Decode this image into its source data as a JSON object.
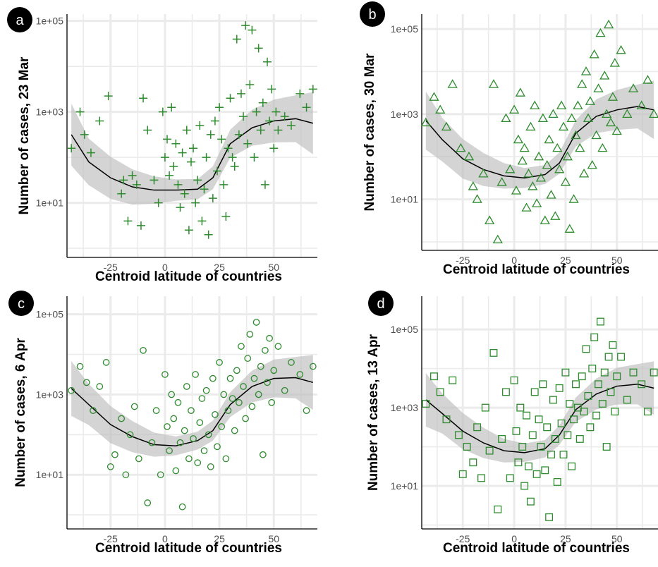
{
  "chart_data": [
    {
      "label": "a",
      "type": "scatter",
      "marker": "plus",
      "xlabel": "Centroid latitude of countries",
      "ylabel": "Number of cases, 23 Mar",
      "xlim": [
        -45,
        70
      ],
      "ylim_log10": [
        -0.2,
        5.15
      ],
      "yscale": "log10",
      "x_ticks": [
        "-25",
        "0",
        "25",
        "50"
      ],
      "y_ticks": [
        "1e+01",
        "1e+03",
        "1e+05"
      ],
      "grid": true,
      "marker_color": "#2e8b2e",
      "trend": {
        "x": [
          -43,
          -35,
          -25,
          -15,
          -5,
          5,
          15,
          22,
          30,
          40,
          50,
          60,
          68
        ],
        "log10_y": [
          2.5,
          1.9,
          1.55,
          1.35,
          1.28,
          1.28,
          1.3,
          1.55,
          2.3,
          2.65,
          2.8,
          2.85,
          2.75
        ]
      },
      "points": [
        [
          -43,
          2.2
        ],
        [
          -39,
          3.0
        ],
        [
          -37,
          2.5
        ],
        [
          -34,
          2.1
        ],
        [
          -30,
          2.8
        ],
        [
          -26,
          3.35
        ],
        [
          -20,
          1.2
        ],
        [
          -19,
          1.5
        ],
        [
          -17,
          0.6
        ],
        [
          -15,
          1.6
        ],
        [
          -13,
          1.4
        ],
        [
          -11,
          0.5
        ],
        [
          -10,
          3.3
        ],
        [
          -8,
          2.6
        ],
        [
          -5,
          1.5
        ],
        [
          -3,
          1.0
        ],
        [
          -1,
          3.0
        ],
        [
          0,
          2.0
        ],
        [
          1,
          2.4
        ],
        [
          2,
          1.6
        ],
        [
          3,
          3.1
        ],
        [
          4,
          1.8
        ],
        [
          5,
          2.3
        ],
        [
          6,
          1.4
        ],
        [
          7,
          0.9
        ],
        [
          8,
          2.1
        ],
        [
          9,
          1.2
        ],
        [
          10,
          2.6
        ],
        [
          11,
          0.4
        ],
        [
          12,
          1.9
        ],
        [
          13,
          2.2
        ],
        [
          14,
          1.0
        ],
        [
          15,
          1.5
        ],
        [
          16,
          2.7
        ],
        [
          17,
          0.6
        ],
        [
          18,
          1.3
        ],
        [
          19,
          2.0
        ],
        [
          20,
          0.3
        ],
        [
          21,
          2.5
        ],
        [
          22,
          1.1
        ],
        [
          23,
          2.8
        ],
        [
          24,
          1.7
        ],
        [
          25,
          3.1
        ],
        [
          26,
          2.4
        ],
        [
          27,
          1.4
        ],
        [
          28,
          0.7
        ],
        [
          29,
          2.2
        ],
        [
          30,
          3.3
        ],
        [
          31,
          2.0
        ],
        [
          32,
          1.8
        ],
        [
          33,
          4.6
        ],
        [
          34,
          2.5
        ],
        [
          35,
          3.4
        ],
        [
          36,
          2.9
        ],
        [
          37,
          4.9
        ],
        [
          38,
          2.3
        ],
        [
          39,
          3.6
        ],
        [
          40,
          4.8
        ],
        [
          41,
          2.0
        ],
        [
          42,
          3.0
        ],
        [
          43,
          4.4
        ],
        [
          44,
          2.6
        ],
        [
          45,
          3.2
        ],
        [
          46,
          1.4
        ],
        [
          47,
          4.1
        ],
        [
          48,
          2.8
        ],
        [
          49,
          3.5
        ],
        [
          50,
          2.2
        ],
        [
          51,
          3.0
        ],
        [
          52,
          2.6
        ],
        [
          55,
          2.9
        ],
        [
          58,
          2.7
        ],
        [
          62,
          3.4
        ],
        [
          65,
          3.1
        ],
        [
          68,
          3.5
        ]
      ]
    },
    {
      "label": "b",
      "type": "scatter",
      "marker": "triangle",
      "xlabel": "Centroid latitude of countries",
      "ylabel": "Number of cases, 30 Mar",
      "xlim": [
        -45,
        70
      ],
      "ylim_log10": [
        -0.2,
        5.35
      ],
      "yscale": "log10",
      "x_ticks": [
        "-25",
        "0",
        "25",
        "50"
      ],
      "y_ticks": [
        "1e+01",
        "1e+03",
        "1e+05"
      ],
      "grid": true,
      "marker_color": "#2e8b2e",
      "trend": {
        "x": [
          -43,
          -35,
          -25,
          -15,
          -5,
          5,
          15,
          22,
          30,
          40,
          50,
          60,
          68
        ],
        "log10_y": [
          2.85,
          2.4,
          1.95,
          1.7,
          1.55,
          1.5,
          1.58,
          1.85,
          2.55,
          2.95,
          3.1,
          3.18,
          3.1
        ]
      },
      "points": [
        [
          -43,
          2.8
        ],
        [
          -39,
          3.4
        ],
        [
          -36,
          3.1
        ],
        [
          -33,
          2.7
        ],
        [
          -30,
          3.7
        ],
        [
          -26,
          2.2
        ],
        [
          -22,
          2.0
        ],
        [
          -20,
          1.3
        ],
        [
          -18,
          1.0
        ],
        [
          -15,
          1.6
        ],
        [
          -12,
          0.5
        ],
        [
          -10,
          3.7
        ],
        [
          -8,
          0.05
        ],
        [
          -6,
          1.4
        ],
        [
          -4,
          2.9
        ],
        [
          -2,
          1.7
        ],
        [
          0,
          3.1
        ],
        [
          1,
          1.2
        ],
        [
          2,
          2.4
        ],
        [
          3,
          3.5
        ],
        [
          4,
          1.9
        ],
        [
          5,
          2.2
        ],
        [
          6,
          0.8
        ],
        [
          7,
          1.6
        ],
        [
          8,
          2.7
        ],
        [
          9,
          1.3
        ],
        [
          10,
          3.2
        ],
        [
          11,
          0.9
        ],
        [
          12,
          2.0
        ],
        [
          13,
          1.5
        ],
        [
          14,
          2.9
        ],
        [
          15,
          0.5
        ],
        [
          16,
          1.8
        ],
        [
          17,
          2.4
        ],
        [
          18,
          1.1
        ],
        [
          19,
          3.0
        ],
        [
          20,
          0.6
        ],
        [
          21,
          2.2
        ],
        [
          22,
          1.7
        ],
        [
          23,
          3.2
        ],
        [
          24,
          2.7
        ],
        [
          25,
          1.4
        ],
        [
          26,
          2.0
        ],
        [
          27,
          0.3
        ],
        [
          28,
          2.9
        ],
        [
          29,
          1.0
        ],
        [
          30,
          2.5
        ],
        [
          31,
          3.2
        ],
        [
          32,
          2.2
        ],
        [
          33,
          3.7
        ],
        [
          34,
          1.6
        ],
        [
          35,
          4.0
        ],
        [
          36,
          2.9
        ],
        [
          37,
          3.3
        ],
        [
          38,
          1.8
        ],
        [
          39,
          4.4
        ],
        [
          40,
          2.5
        ],
        [
          41,
          3.6
        ],
        [
          42,
          4.9
        ],
        [
          43,
          2.2
        ],
        [
          44,
          3.9
        ],
        [
          45,
          3.0
        ],
        [
          46,
          5.1
        ],
        [
          47,
          2.8
        ],
        [
          48,
          3.4
        ],
        [
          49,
          4.2
        ],
        [
          50,
          2.6
        ],
        [
          52,
          4.5
        ],
        [
          55,
          3.0
        ],
        [
          58,
          3.6
        ],
        [
          62,
          3.2
        ],
        [
          65,
          3.8
        ],
        [
          68,
          3.0
        ]
      ]
    },
    {
      "label": "c",
      "type": "scatter",
      "marker": "circle",
      "xlabel": "Centroid latitude of countries",
      "ylabel": "Number of cases, 6 Apr",
      "xlim": [
        -45,
        70
      ],
      "ylim_log10": [
        -0.35,
        5.45
      ],
      "yscale": "log10",
      "x_ticks": [
        "-25",
        "0",
        "25",
        "50"
      ],
      "y_ticks": [
        "1e+01",
        "1e+03",
        "1e+05"
      ],
      "grid": true,
      "marker_color": "#2e8b2e",
      "trend": {
        "x": [
          -43,
          -35,
          -25,
          -15,
          -5,
          5,
          15,
          22,
          30,
          40,
          50,
          60,
          68
        ],
        "log10_y": [
          3.15,
          2.75,
          2.25,
          1.95,
          1.75,
          1.72,
          1.85,
          2.1,
          2.75,
          3.2,
          3.4,
          3.42,
          3.3
        ]
      },
      "points": [
        [
          -43,
          3.1
        ],
        [
          -39,
          3.7
        ],
        [
          -36,
          3.3
        ],
        [
          -33,
          2.6
        ],
        [
          -30,
          3.2
        ],
        [
          -27,
          3.8
        ],
        [
          -25,
          1.2
        ],
        [
          -23,
          1.5
        ],
        [
          -20,
          2.4
        ],
        [
          -18,
          1.0
        ],
        [
          -16,
          2.0
        ],
        [
          -14,
          2.7
        ],
        [
          -12,
          1.4
        ],
        [
          -10,
          4.1
        ],
        [
          -8,
          0.3
        ],
        [
          -6,
          1.8
        ],
        [
          -4,
          2.6
        ],
        [
          -2,
          1.0
        ],
        [
          0,
          3.5
        ],
        [
          1,
          2.2
        ],
        [
          2,
          1.6
        ],
        [
          3,
          3.0
        ],
        [
          4,
          2.4
        ],
        [
          5,
          1.1
        ],
        [
          6,
          2.8
        ],
        [
          7,
          1.8
        ],
        [
          8,
          0.2
        ],
        [
          9,
          2.1
        ],
        [
          10,
          3.2
        ],
        [
          11,
          1.4
        ],
        [
          12,
          2.6
        ],
        [
          13,
          1.9
        ],
        [
          14,
          3.5
        ],
        [
          15,
          1.3
        ],
        [
          16,
          2.3
        ],
        [
          17,
          2.9
        ],
        [
          18,
          1.6
        ],
        [
          19,
          3.1
        ],
        [
          20,
          2.0
        ],
        [
          21,
          1.2
        ],
        [
          22,
          3.4
        ],
        [
          23,
          2.5
        ],
        [
          24,
          1.7
        ],
        [
          25,
          3.8
        ],
        [
          26,
          2.2
        ],
        [
          27,
          3.0
        ],
        [
          28,
          1.4
        ],
        [
          29,
          2.6
        ],
        [
          30,
          3.4
        ],
        [
          31,
          2.9
        ],
        [
          32,
          2.1
        ],
        [
          33,
          3.6
        ],
        [
          34,
          2.8
        ],
        [
          35,
          4.2
        ],
        [
          36,
          3.2
        ],
        [
          37,
          2.4
        ],
        [
          38,
          3.9
        ],
        [
          39,
          4.5
        ],
        [
          40,
          2.7
        ],
        [
          41,
          3.4
        ],
        [
          42,
          4.8
        ],
        [
          43,
          3.0
        ],
        [
          44,
          3.7
        ],
        [
          45,
          1.5
        ],
        [
          46,
          4.1
        ],
        [
          47,
          3.3
        ],
        [
          48,
          4.4
        ],
        [
          49,
          2.8
        ],
        [
          50,
          3.6
        ],
        [
          52,
          4.2
        ],
        [
          55,
          3.1
        ],
        [
          58,
          3.8
        ],
        [
          62,
          3.5
        ],
        [
          65,
          2.6
        ],
        [
          68,
          3.7
        ]
      ]
    },
    {
      "label": "d",
      "type": "scatter",
      "marker": "square",
      "xlabel": "Centroid latitude of countries",
      "ylabel": "Number of cases, 13 Apr",
      "xlim": [
        -45,
        70
      ],
      "ylim_log10": [
        -0.1,
        5.85
      ],
      "yscale": "log10",
      "x_ticks": [
        "-25",
        "0",
        "25",
        "50"
      ],
      "y_ticks": [
        "1e+01",
        "1e+03",
        "1e+05"
      ],
      "grid": true,
      "marker_color": "#2e8b2e",
      "trend": {
        "x": [
          -43,
          -35,
          -25,
          -15,
          -5,
          5,
          15,
          22,
          30,
          40,
          50,
          60,
          68
        ],
        "log10_y": [
          3.2,
          2.85,
          2.4,
          2.1,
          1.9,
          1.85,
          1.95,
          2.3,
          2.95,
          3.35,
          3.55,
          3.6,
          3.5
        ]
      },
      "points": [
        [
          -43,
          3.1
        ],
        [
          -39,
          3.8
        ],
        [
          -36,
          3.4
        ],
        [
          -33,
          2.7
        ],
        [
          -30,
          3.7
        ],
        [
          -27,
          2.3
        ],
        [
          -25,
          1.3
        ],
        [
          -23,
          2.0
        ],
        [
          -20,
          1.6
        ],
        [
          -18,
          2.5
        ],
        [
          -16,
          1.2
        ],
        [
          -14,
          3.0
        ],
        [
          -12,
          1.9
        ],
        [
          -10,
          4.4
        ],
        [
          -8,
          0.4
        ],
        [
          -6,
          2.2
        ],
        [
          -4,
          3.4
        ],
        [
          -2,
          1.2
        ],
        [
          0,
          3.7
        ],
        [
          1,
          2.4
        ],
        [
          2,
          1.6
        ],
        [
          3,
          3.0
        ],
        [
          4,
          2.0
        ],
        [
          5,
          1.0
        ],
        [
          6,
          2.8
        ],
        [
          7,
          1.5
        ],
        [
          8,
          0.6
        ],
        [
          9,
          2.3
        ],
        [
          10,
          3.4
        ],
        [
          11,
          1.3
        ],
        [
          12,
          2.7
        ],
        [
          13,
          2.0
        ],
        [
          14,
          3.6
        ],
        [
          15,
          1.4
        ],
        [
          16,
          2.5
        ],
        [
          17,
          0.2
        ],
        [
          18,
          1.8
        ],
        [
          19,
          3.2
        ],
        [
          20,
          2.2
        ],
        [
          21,
          1.1
        ],
        [
          22,
          3.5
        ],
        [
          23,
          2.6
        ],
        [
          24,
          1.8
        ],
        [
          25,
          3.9
        ],
        [
          26,
          2.3
        ],
        [
          27,
          3.1
        ],
        [
          28,
          1.5
        ],
        [
          29,
          2.7
        ],
        [
          30,
          3.6
        ],
        [
          31,
          3.0
        ],
        [
          32,
          2.2
        ],
        [
          33,
          3.8
        ],
        [
          34,
          2.9
        ],
        [
          35,
          4.5
        ],
        [
          36,
          3.3
        ],
        [
          37,
          2.5
        ],
        [
          38,
          4.0
        ],
        [
          39,
          4.8
        ],
        [
          40,
          2.8
        ],
        [
          41,
          3.6
        ],
        [
          42,
          5.2
        ],
        [
          43,
          3.1
        ],
        [
          44,
          3.9
        ],
        [
          45,
          2.0
        ],
        [
          46,
          4.3
        ],
        [
          47,
          3.4
        ],
        [
          48,
          4.6
        ],
        [
          49,
          2.9
        ],
        [
          50,
          3.8
        ],
        [
          52,
          4.3
        ],
        [
          55,
          3.2
        ],
        [
          58,
          3.9
        ],
        [
          62,
          3.6
        ],
        [
          65,
          2.9
        ],
        [
          68,
          3.9
        ]
      ]
    }
  ]
}
